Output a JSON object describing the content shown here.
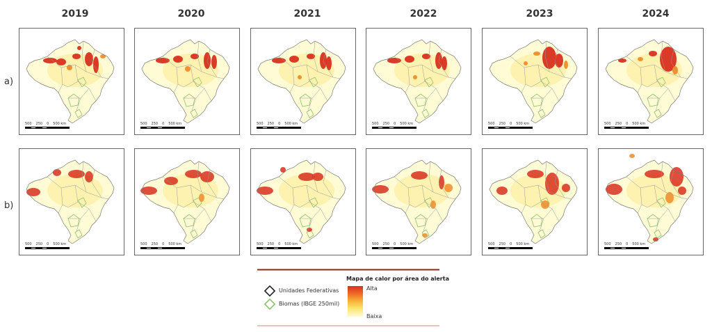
{
  "years": [
    "2019",
    "2020",
    "2021",
    "2022",
    "2023",
    "2024"
  ],
  "rows": [
    {
      "label": "a)"
    },
    {
      "label": "b)"
    }
  ],
  "scalebar": {
    "left": "500",
    "mid": "250",
    "zero": "0",
    "right": "500 km"
  },
  "legend": {
    "title": "Mapa de calor por área do alerta",
    "uf_label": "Unidades Federativas",
    "biomes_label": "Biomas (IBGE 250mil)",
    "high_label": "Alta",
    "low_label": "Baixa"
  },
  "colors": {
    "rule": "#8b2a10",
    "rule_light": "#d08a7a",
    "uf_symbol": "#222222",
    "biome_symbol": "#8dc26a",
    "heat_high": "#d7301f",
    "heat_low": "#fffbd5"
  }
}
